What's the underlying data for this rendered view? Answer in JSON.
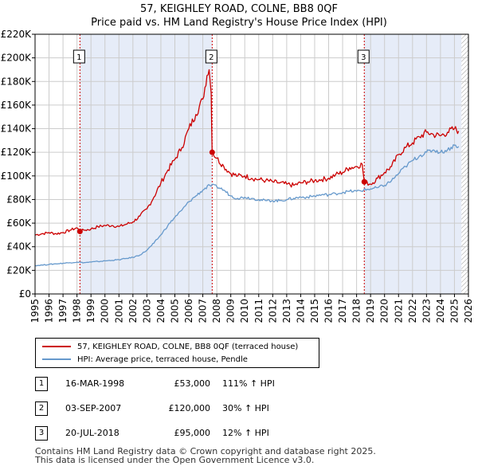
{
  "title_line1": "57, KEIGHLEY ROAD, COLNE, BB8 0QF",
  "title_line2": "Price paid vs. HM Land Registry's House Price Index (HPI)",
  "colors": {
    "property": "#cc0000",
    "hpi": "#6699cc",
    "shade": "#e6ecf8",
    "grid": "#cccccc",
    "marker_line": "#cc0000"
  },
  "legend": {
    "property_label": "57, KEIGHLEY ROAD, COLNE, BB8 0QF (terraced house)",
    "hpi_label": "HPI: Average price, terraced house, Pendle"
  },
  "sales": [
    {
      "badge": "1",
      "date": "16-MAR-1998",
      "price": "£53,000",
      "hpi": "111% ↑ HPI"
    },
    {
      "badge": "2",
      "date": "03-SEP-2007",
      "price": "£120,000",
      "hpi": "30% ↑ HPI"
    },
    {
      "badge": "3",
      "date": "20-JUL-2018",
      "price": "£95,000",
      "hpi": "12% ↑ HPI"
    }
  ],
  "footer_line1": "Contains HM Land Registry data © Crown copyright and database right 2025.",
  "footer_line2": "This data is licensed under the Open Government Licence v3.0.",
  "chart_data": {
    "type": "line",
    "title": "57, KEIGHLEY ROAD, COLNE, BB8 0QF — Price paid vs. HM Land Registry's House Price Index (HPI)",
    "xlabel": "",
    "ylabel": "",
    "xlim": [
      1995,
      2026
    ],
    "ylim": [
      0,
      220000
    ],
    "y_ticks": [
      0,
      20000,
      40000,
      60000,
      80000,
      100000,
      120000,
      140000,
      160000,
      180000,
      200000,
      220000
    ],
    "y_tick_labels": [
      "£0",
      "£20K",
      "£40K",
      "£60K",
      "£80K",
      "£100K",
      "£120K",
      "£140K",
      "£160K",
      "£180K",
      "£200K",
      "£220K"
    ],
    "x_ticks": [
      1995,
      1996,
      1997,
      1998,
      1999,
      2000,
      2001,
      2002,
      2003,
      2004,
      2005,
      2006,
      2007,
      2008,
      2009,
      2010,
      2011,
      2012,
      2013,
      2014,
      2015,
      2016,
      2017,
      2018,
      2019,
      2020,
      2021,
      2022,
      2023,
      2024,
      2025,
      2026
    ],
    "x_tick_labels": [
      "1995",
      "1996",
      "1997",
      "1998",
      "1999",
      "2000",
      "2001",
      "2002",
      "2003",
      "2004",
      "2005",
      "2006",
      "2007",
      "2008",
      "2009",
      "2010",
      "2011",
      "2012",
      "2013",
      "2014",
      "2015",
      "2016",
      "2017",
      "2018",
      "2019",
      "2020",
      "2021",
      "2022",
      "2023",
      "2024",
      "2025",
      "2026"
    ],
    "grid": true,
    "legend_position": "below",
    "shaded_ranges": [
      [
        1998.21,
        2007.67
      ],
      [
        2018.55,
        2025.5
      ]
    ],
    "hatched_from": 2025.5,
    "sale_markers": [
      {
        "label": "1",
        "x": 1998.21,
        "y": 53000
      },
      {
        "label": "2",
        "x": 2007.67,
        "y": 120000
      },
      {
        "label": "3",
        "x": 2018.55,
        "y": 95000
      }
    ],
    "series": [
      {
        "name": "57, KEIGHLEY ROAD, COLNE, BB8 0QF (terraced house)",
        "x": [
          1995.0,
          1995.5,
          1996.0,
          1996.5,
          1997.0,
          1997.5,
          1998.0,
          1998.21,
          1998.5,
          1999.0,
          1999.5,
          2000.0,
          2000.5,
          2001.0,
          2001.5,
          2002.0,
          2002.5,
          2003.0,
          2003.5,
          2004.0,
          2004.5,
          2005.0,
          2005.5,
          2006.0,
          2006.5,
          2007.0,
          2007.3,
          2007.45,
          2007.6,
          2007.67,
          2008.0,
          2008.5,
          2009.0,
          2009.5,
          2010.0,
          2010.5,
          2011.0,
          2011.5,
          2012.0,
          2012.5,
          2013.0,
          2013.5,
          2014.0,
          2014.5,
          2015.0,
          2015.5,
          2016.0,
          2016.5,
          2017.0,
          2017.5,
          2018.0,
          2018.4,
          2018.55,
          2019.0,
          2019.5,
          2020.0,
          2020.5,
          2021.0,
          2021.5,
          2022.0,
          2022.5,
          2023.0,
          2023.5,
          2024.0,
          2024.5,
          2025.0,
          2025.3
        ],
        "y": [
          50000,
          51000,
          52000,
          51000,
          52000,
          54000,
          56000,
          53000,
          54000,
          55000,
          57000,
          58000,
          58000,
          57000,
          59000,
          61000,
          66000,
          72000,
          82000,
          94000,
          105000,
          114000,
          124000,
          140000,
          152000,
          165000,
          185000,
          190000,
          170000,
          120000,
          115000,
          108000,
          102000,
          100000,
          100000,
          98000,
          97000,
          96000,
          95000,
          94000,
          93000,
          92000,
          94000,
          95000,
          96000,
          97000,
          98000,
          101000,
          103000,
          107000,
          108000,
          110000,
          95000,
          93000,
          98000,
          103000,
          108000,
          118000,
          124000,
          128000,
          133000,
          137000,
          135000,
          134000,
          137000,
          140000,
          138000
        ]
      },
      {
        "name": "HPI: Average price, terraced house, Pendle",
        "x": [
          1995.0,
          1995.5,
          1996.0,
          1996.5,
          1997.0,
          1997.5,
          1998.0,
          1998.5,
          1999.0,
          1999.5,
          2000.0,
          2000.5,
          2001.0,
          2001.5,
          2002.0,
          2002.5,
          2003.0,
          2003.5,
          2004.0,
          2004.5,
          2005.0,
          2005.5,
          2006.0,
          2006.5,
          2007.0,
          2007.5,
          2008.0,
          2008.5,
          2009.0,
          2009.5,
          2010.0,
          2010.5,
          2011.0,
          2011.5,
          2012.0,
          2012.5,
          2013.0,
          2013.5,
          2014.0,
          2014.5,
          2015.0,
          2015.5,
          2016.0,
          2016.5,
          2017.0,
          2017.5,
          2018.0,
          2018.5,
          2019.0,
          2019.5,
          2020.0,
          2020.5,
          2021.0,
          2021.5,
          2022.0,
          2022.5,
          2023.0,
          2023.5,
          2024.0,
          2024.5,
          2025.0,
          2025.3
        ],
        "y": [
          24000,
          24500,
          25000,
          25500,
          26000,
          26500,
          27000,
          26500,
          27000,
          27500,
          28000,
          28500,
          29000,
          30000,
          31000,
          33000,
          37000,
          43000,
          50000,
          58000,
          65000,
          71000,
          78000,
          83000,
          88000,
          92000,
          91000,
          88000,
          83000,
          81000,
          82000,
          81000,
          80000,
          79000,
          79000,
          79000,
          80000,
          81000,
          82000,
          82000,
          83000,
          84000,
          84000,
          85000,
          86000,
          87000,
          87000,
          88000,
          89000,
          90000,
          92000,
          96000,
          102000,
          108000,
          113000,
          117000,
          120000,
          122000,
          120000,
          122000,
          126000,
          125000
        ]
      }
    ]
  }
}
